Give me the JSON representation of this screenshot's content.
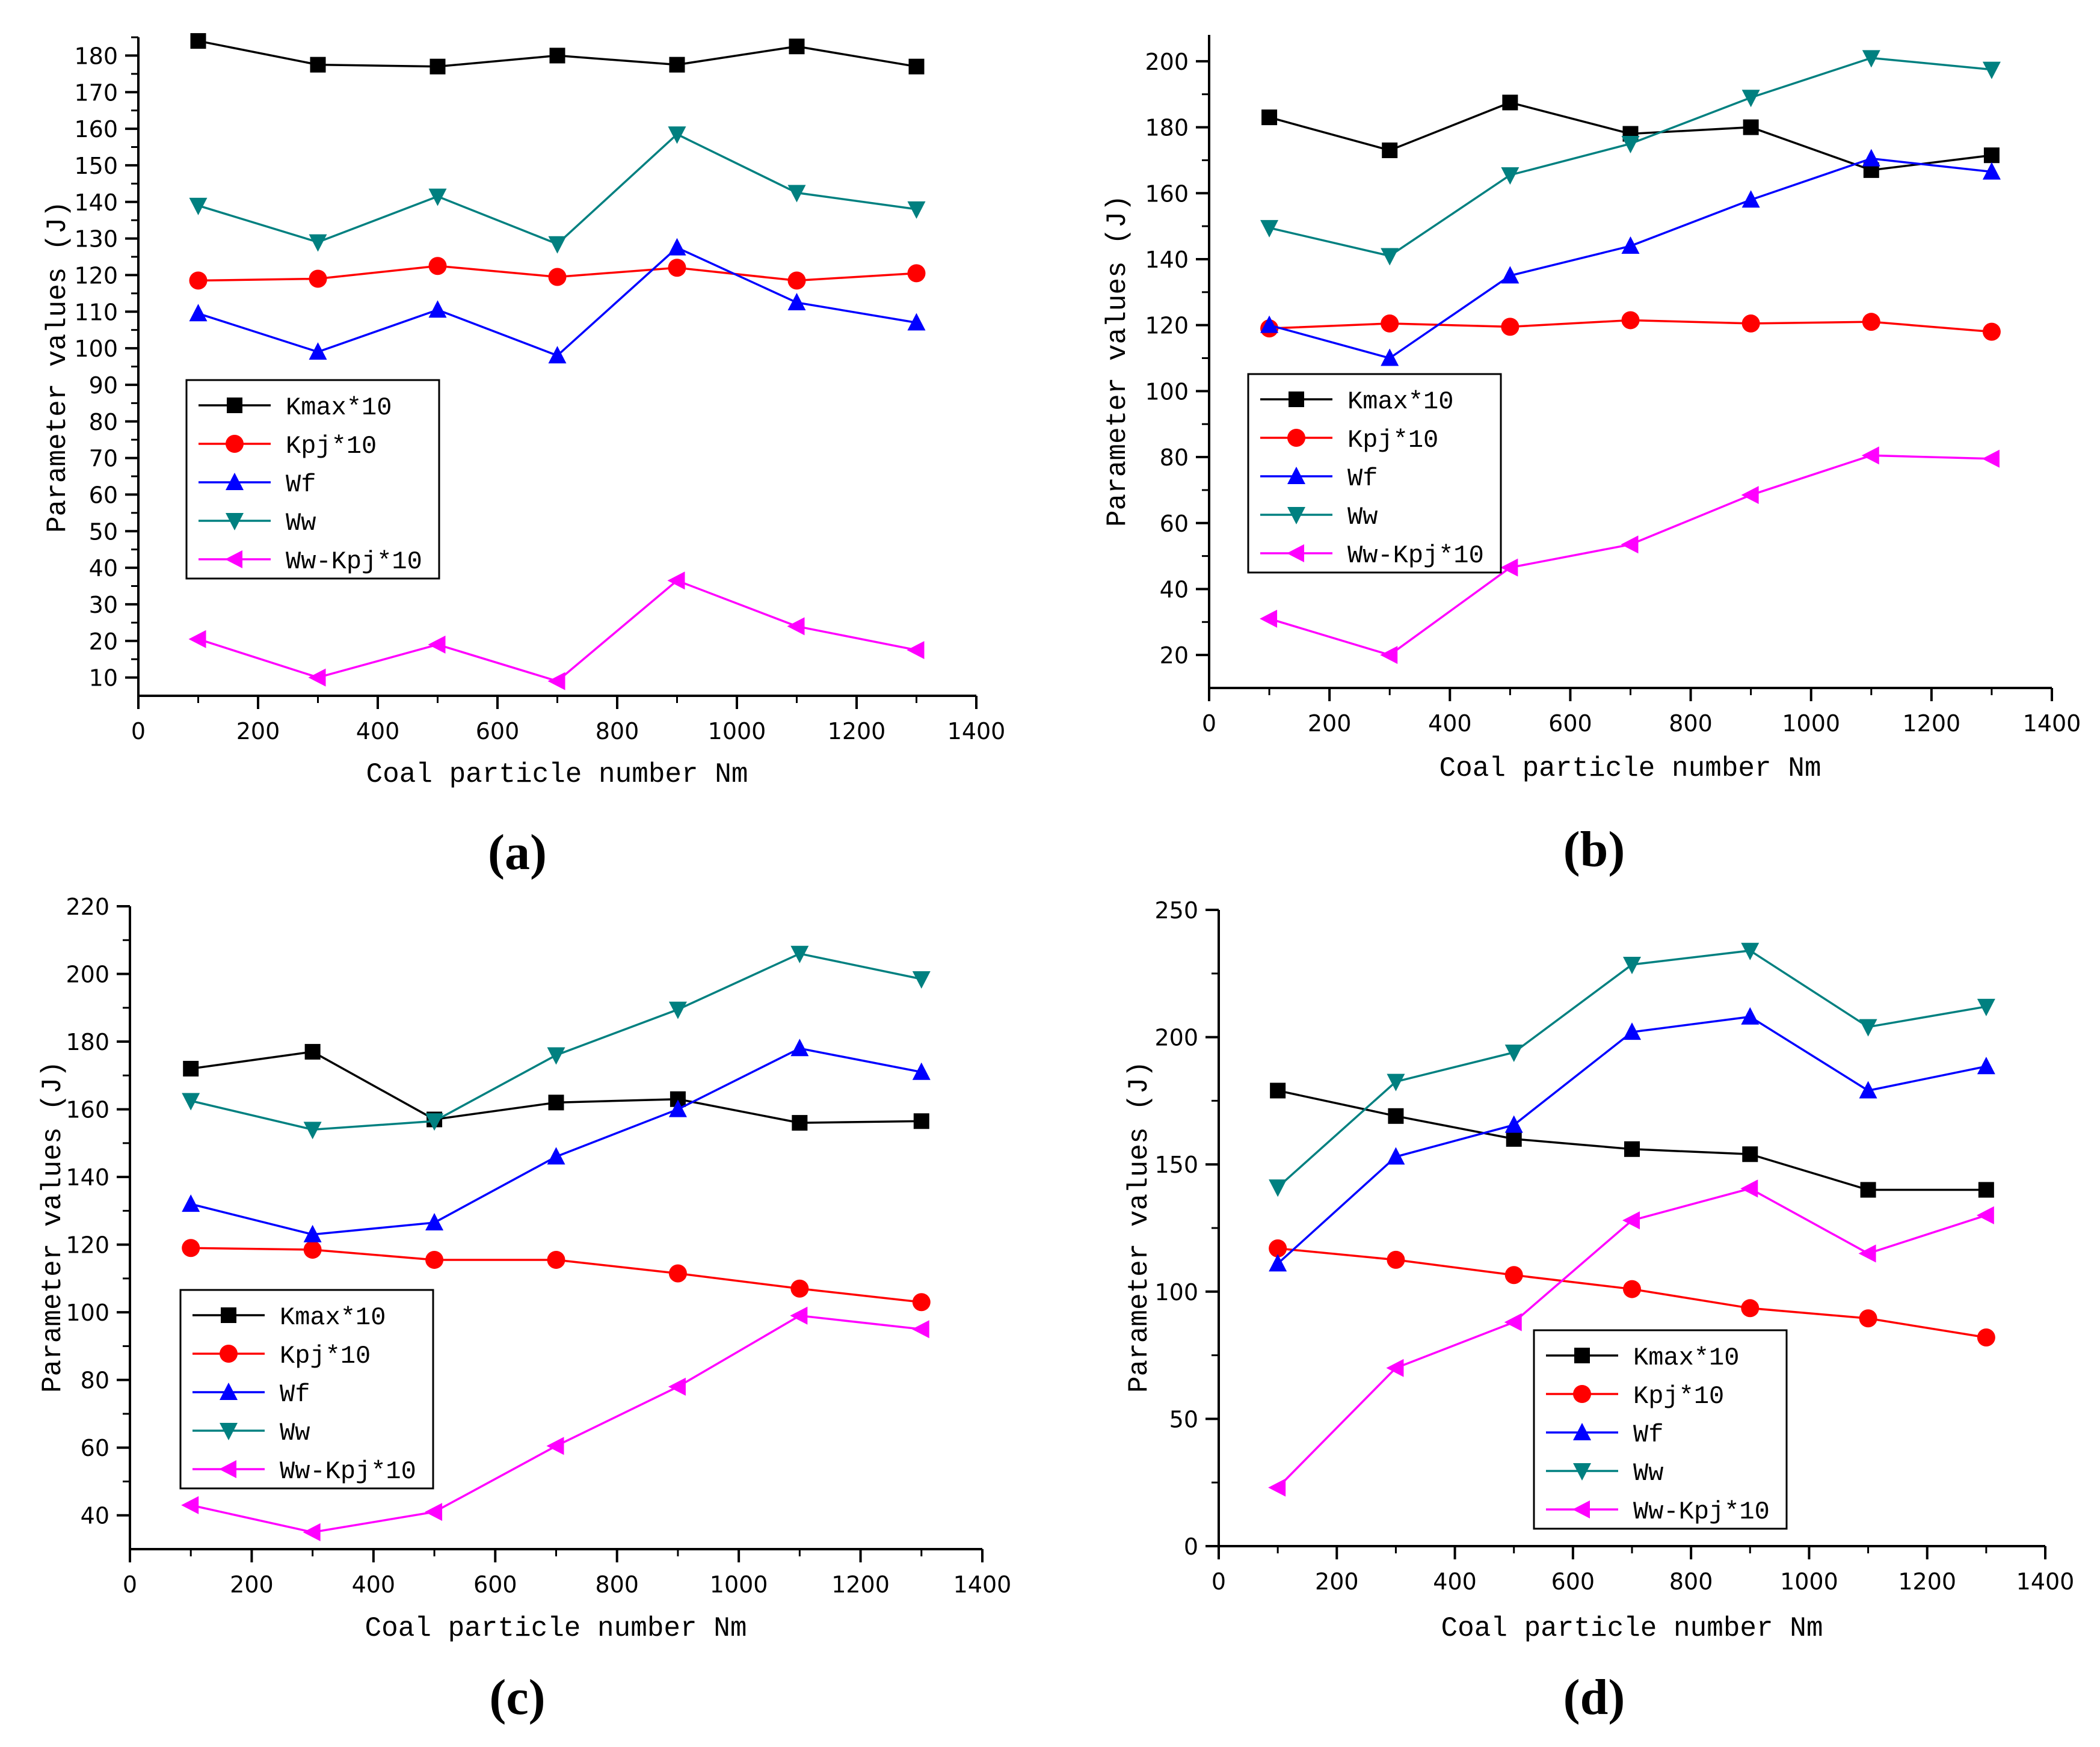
{
  "series_styles": [
    {
      "color": "#000000",
      "marker": "square"
    },
    {
      "color": "#ff0000",
      "marker": "circle"
    },
    {
      "color": "#0000ff",
      "marker": "triangle-up"
    },
    {
      "color": "#008080",
      "marker": "triangle-down"
    },
    {
      "color": "#ff00ff",
      "marker": "triangle-left"
    }
  ],
  "chart_data": [
    {
      "panel": "(a)",
      "type": "line",
      "xlabel": "Coal particle number Nm",
      "ylabel": "Parameter values (J)",
      "xlim": [
        0,
        1400
      ],
      "ylim": [
        5,
        185
      ],
      "xticks": [
        0,
        200,
        400,
        600,
        800,
        1000,
        1200,
        1400
      ],
      "yticks": [
        10,
        20,
        30,
        40,
        50,
        60,
        70,
        80,
        90,
        100,
        110,
        120,
        130,
        140,
        150,
        160,
        170,
        180
      ],
      "x": [
        100,
        300,
        500,
        700,
        900,
        1100,
        1300
      ],
      "legend_position": "middle-left",
      "series": [
        {
          "name": "Kmax*10",
          "values": [
            184,
            177.5,
            177,
            180,
            177.5,
            182.5,
            177
          ]
        },
        {
          "name": "Kpj*10",
          "values": [
            118.5,
            119,
            122.5,
            119.5,
            122,
            118.5,
            120.5
          ]
        },
        {
          "name": "Wf",
          "values": [
            109.5,
            99,
            110.5,
            98,
            127.5,
            112.5,
            107
          ]
        },
        {
          "name": "Ww",
          "values": [
            139,
            129,
            141.5,
            128.5,
            158.5,
            142.5,
            138
          ]
        },
        {
          "name": "Ww-Kpj*10",
          "values": [
            20.5,
            10,
            19,
            9,
            36.5,
            24,
            17.5
          ]
        }
      ]
    },
    {
      "panel": "(b)",
      "type": "line",
      "xlabel": "Coal particle number Nm",
      "ylabel": "Parameter values (J)",
      "xlim": [
        0,
        1400
      ],
      "ylim": [
        10,
        208
      ],
      "xticks": [
        0,
        200,
        400,
        600,
        800,
        1000,
        1200,
        1400
      ],
      "yticks": [
        20,
        40,
        60,
        80,
        100,
        120,
        140,
        160,
        180,
        200
      ],
      "x": [
        100,
        300,
        500,
        700,
        900,
        1100,
        1300
      ],
      "legend_position": "middle-left",
      "series": [
        {
          "name": "Kmax*10",
          "values": [
            183,
            173,
            187.5,
            178,
            180,
            167,
            171.5
          ]
        },
        {
          "name": "Kpj*10",
          "values": [
            119,
            120.5,
            119.5,
            121.5,
            120.5,
            121,
            118
          ]
        },
        {
          "name": "Wf",
          "values": [
            120,
            110,
            135,
            144,
            158,
            170.5,
            166.5
          ]
        },
        {
          "name": "Ww",
          "values": [
            149.5,
            141,
            165.5,
            175,
            189,
            201,
            197.5
          ]
        },
        {
          "name": "Ww-Kpj*10",
          "values": [
            31,
            20,
            46.5,
            53.5,
            68.5,
            80.5,
            79.5
          ]
        }
      ]
    },
    {
      "panel": "(c)",
      "type": "line",
      "xlabel": "Coal particle number Nm",
      "ylabel": "Parameter values (J)",
      "xlim": [
        0,
        1400
      ],
      "ylim": [
        30,
        220
      ],
      "xticks": [
        0,
        200,
        400,
        600,
        800,
        1000,
        1200,
        1400
      ],
      "yticks": [
        40,
        60,
        80,
        100,
        120,
        140,
        160,
        180,
        200,
        220
      ],
      "x": [
        100,
        300,
        500,
        700,
        900,
        1100,
        1300
      ],
      "legend_position": "bottom-left",
      "series": [
        {
          "name": "Kmax*10",
          "values": [
            172,
            177,
            157,
            162,
            163,
            156,
            156.5
          ]
        },
        {
          "name": "Kpj*10",
          "values": [
            119,
            118.5,
            115.5,
            115.5,
            111.5,
            107,
            103
          ]
        },
        {
          "name": "Wf",
          "values": [
            132,
            123,
            126.5,
            146,
            160,
            178,
            171
          ]
        },
        {
          "name": "Ww",
          "values": [
            162.5,
            154,
            156.5,
            176,
            189.5,
            206,
            198.5
          ]
        },
        {
          "name": "Ww-Kpj*10",
          "values": [
            43,
            35,
            41,
            60.5,
            78,
            99,
            95
          ]
        }
      ]
    },
    {
      "panel": "(d)",
      "type": "line",
      "xlabel": "Coal particle number Nm",
      "ylabel": "Parameter values (J)",
      "xlim": [
        0,
        1400
      ],
      "ylim": [
        0,
        250
      ],
      "xticks": [
        0,
        200,
        400,
        600,
        800,
        1000,
        1200,
        1400
      ],
      "yticks": [
        0,
        50,
        100,
        150,
        200,
        250
      ],
      "x": [
        100,
        300,
        500,
        700,
        900,
        1100,
        1300
      ],
      "legend_position": "bottom-center",
      "series": [
        {
          "name": "Kmax*10",
          "values": [
            179,
            169,
            160,
            156,
            154,
            140,
            140
          ]
        },
        {
          "name": "Kpj*10",
          "values": [
            117,
            112.5,
            106.5,
            101,
            93.5,
            89.5,
            82
          ]
        },
        {
          "name": "Wf",
          "values": [
            111,
            153,
            165.5,
            202,
            208,
            179,
            188.5
          ]
        },
        {
          "name": "Ww",
          "values": [
            141,
            182.5,
            194,
            228.5,
            234,
            204,
            212
          ]
        },
        {
          "name": "Ww-Kpj*10",
          "values": [
            23,
            70,
            88,
            128,
            140.5,
            115,
            130
          ]
        }
      ]
    }
  ]
}
